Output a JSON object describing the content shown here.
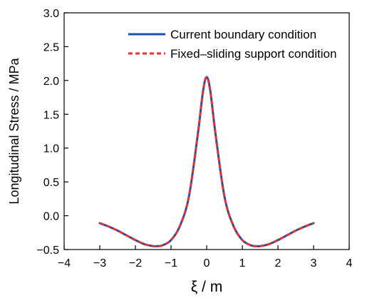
{
  "chart_data": {
    "type": "line",
    "xlabel": "ξ / m",
    "ylabel": "Longitudinal Stress / MPa",
    "xlim": [
      -4,
      4
    ],
    "ylim": [
      -0.5,
      3.0
    ],
    "xticks": [
      -4,
      -3,
      -2,
      -1,
      0,
      1,
      2,
      3,
      4
    ],
    "xtick_labels": [
      "−4",
      "−3",
      "−2",
      "−1",
      "0",
      "1",
      "2",
      "3",
      "4"
    ],
    "yticks": [
      -0.5,
      0.0,
      0.5,
      1.0,
      1.5,
      2.0,
      2.5,
      3.0
    ],
    "ytick_labels": [
      "−0.5",
      "0.0",
      "0.5",
      "1.0",
      "1.5",
      "2.0",
      "2.5",
      "3.0"
    ],
    "grid": false,
    "legend_position": "top-right",
    "x": [
      -3.0,
      -2.75,
      -2.5,
      -2.25,
      -2.0,
      -1.75,
      -1.5,
      -1.4,
      -1.25,
      -1.0,
      -0.75,
      -0.5,
      -0.25,
      -0.1,
      0.0,
      0.1,
      0.25,
      0.5,
      0.75,
      1.0,
      1.25,
      1.4,
      1.5,
      1.75,
      2.0,
      2.25,
      2.5,
      2.75,
      3.0
    ],
    "series": [
      {
        "name": "Current boundary condition",
        "color": "#1f4fb0",
        "style": "solid",
        "values": [
          -0.11,
          -0.16,
          -0.22,
          -0.29,
          -0.36,
          -0.42,
          -0.45,
          -0.45,
          -0.44,
          -0.36,
          -0.15,
          0.28,
          1.2,
          1.85,
          2.05,
          1.85,
          1.2,
          0.28,
          -0.15,
          -0.36,
          -0.44,
          -0.45,
          -0.45,
          -0.42,
          -0.36,
          -0.29,
          -0.22,
          -0.16,
          -0.11
        ]
      },
      {
        "name": "Fixed–sliding support condition",
        "color": "#e8322d",
        "style": "dashed",
        "values": [
          -0.11,
          -0.16,
          -0.22,
          -0.29,
          -0.36,
          -0.42,
          -0.45,
          -0.45,
          -0.44,
          -0.36,
          -0.15,
          0.28,
          1.2,
          1.85,
          2.05,
          1.85,
          1.2,
          0.28,
          -0.15,
          -0.36,
          -0.44,
          -0.45,
          -0.45,
          -0.42,
          -0.36,
          -0.29,
          -0.22,
          -0.16,
          -0.11
        ]
      }
    ]
  }
}
